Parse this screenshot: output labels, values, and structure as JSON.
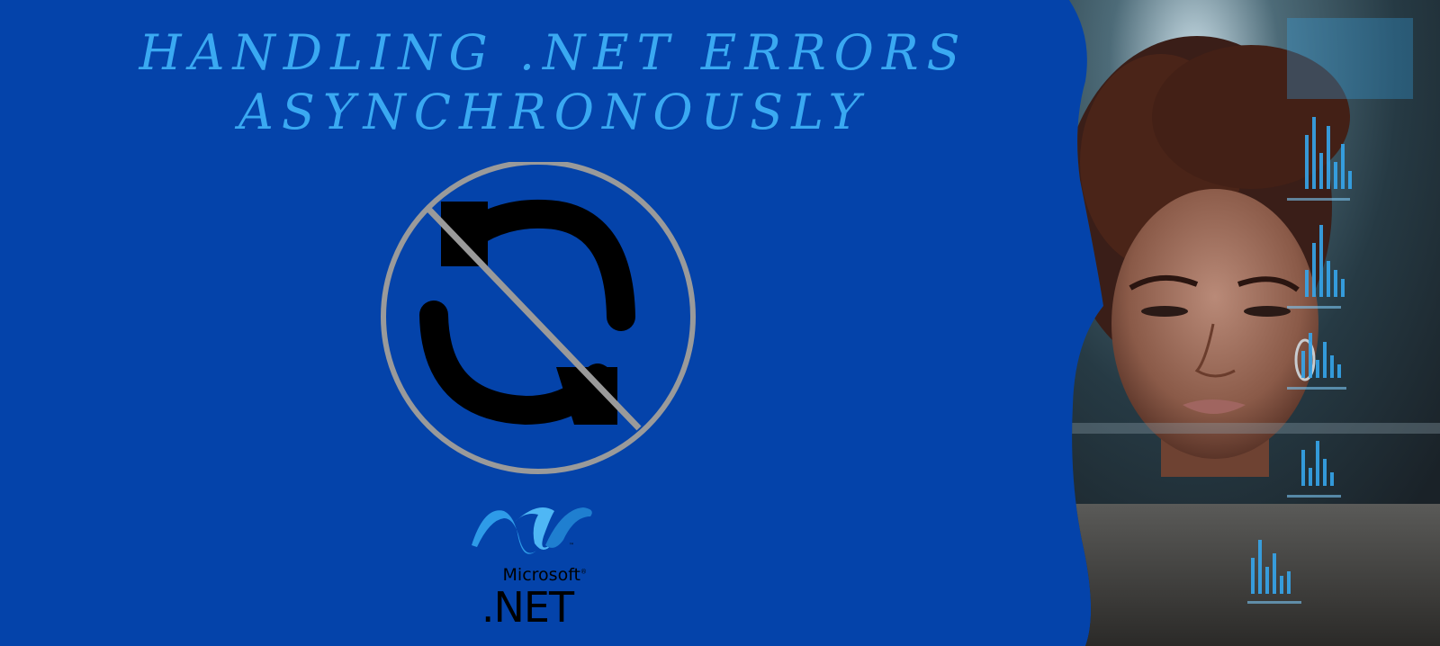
{
  "title": {
    "line1": "HANDLING .NET ERRORS",
    "line2": "ASYNCHRONOUSLY"
  },
  "icons": {
    "center": "no-sync-icon",
    "logo": "dotnet-logo-icon"
  },
  "logo": {
    "brand": "Microsoft",
    "registered": "®",
    "product": ".NET"
  },
  "photo": {
    "subject": "woman-looking-at-holographic-charts"
  },
  "colors": {
    "background": "#0443aa",
    "title": "#3aa9f2",
    "prohibition_ring": "#9a9a9a",
    "sync_arrows": "#000000",
    "logo_blue": "#2e9be8"
  }
}
